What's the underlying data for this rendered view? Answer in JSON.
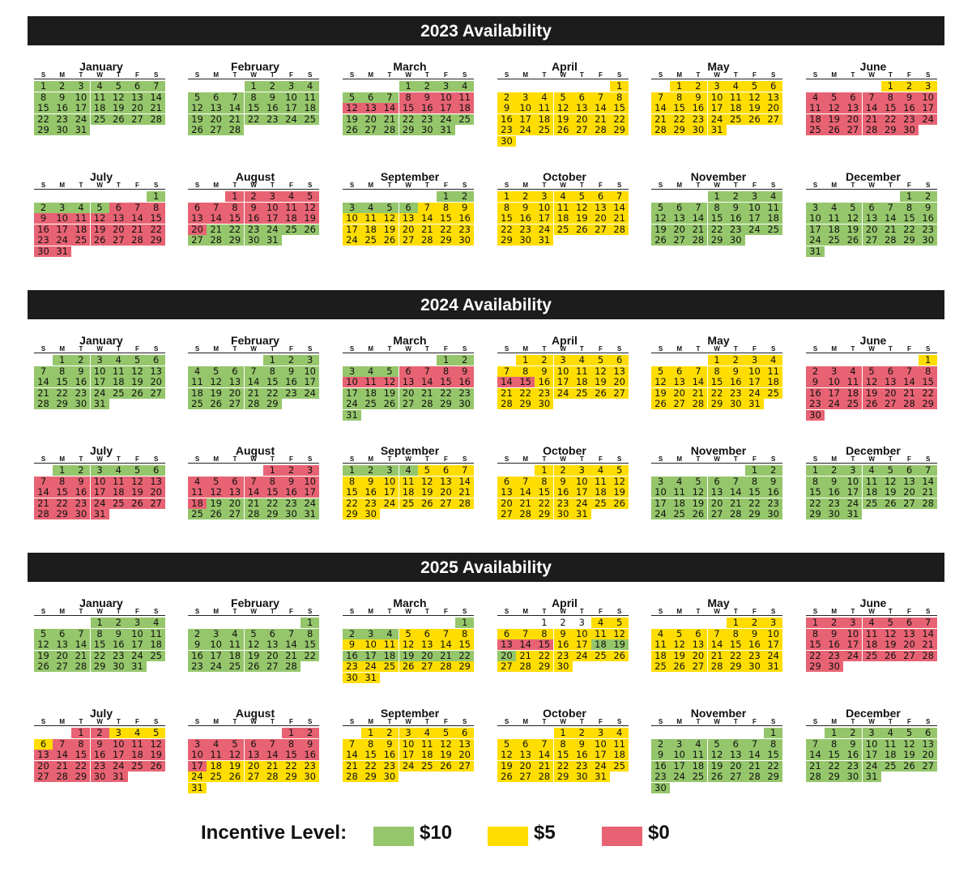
{
  "dow_labels": [
    "S",
    "M",
    "T",
    "W",
    "T",
    "F",
    "S"
  ],
  "colors": {
    "level_10": "#95c66b",
    "level_5": "#ffdd00",
    "level_0": "#e76373"
  },
  "years": [
    {
      "title": "2023 Availability",
      "months": [
        {
          "name": "January",
          "start": 0,
          "days": 31,
          "levels": [
            [
              1,
              31,
              "10"
            ]
          ]
        },
        {
          "name": "February",
          "start": 3,
          "days": 28,
          "levels": [
            [
              1,
              28,
              "10"
            ]
          ]
        },
        {
          "name": "March",
          "start": 3,
          "days": 31,
          "levels": [
            [
              1,
              7,
              "10"
            ],
            [
              8,
              11,
              "0"
            ],
            [
              12,
              18,
              "0"
            ],
            [
              19,
              31,
              "10"
            ]
          ]
        },
        {
          "name": "April",
          "start": 6,
          "days": 30,
          "levels": [
            [
              1,
              30,
              "5"
            ]
          ]
        },
        {
          "name": "May",
          "start": 1,
          "days": 31,
          "levels": [
            [
              1,
              31,
              "5"
            ]
          ]
        },
        {
          "name": "June",
          "start": 4,
          "days": 30,
          "levels": [
            [
              1,
              3,
              "5"
            ],
            [
              4,
              30,
              "0"
            ]
          ]
        },
        {
          "name": "July",
          "start": 6,
          "days": 31,
          "levels": [
            [
              1,
              5,
              "10"
            ],
            [
              6,
              31,
              "0"
            ]
          ]
        },
        {
          "name": "August",
          "start": 2,
          "days": 31,
          "levels": [
            [
              1,
              19,
              "0"
            ],
            [
              20,
              20,
              "0"
            ],
            [
              21,
              31,
              "10"
            ]
          ]
        },
        {
          "name": "September",
          "start": 5,
          "days": 30,
          "levels": [
            [
              1,
              6,
              "10"
            ],
            [
              7,
              30,
              "5"
            ]
          ]
        },
        {
          "name": "October",
          "start": 0,
          "days": 31,
          "levels": [
            [
              1,
              31,
              "5"
            ]
          ]
        },
        {
          "name": "November",
          "start": 3,
          "days": 30,
          "levels": [
            [
              1,
              30,
              "10"
            ]
          ]
        },
        {
          "name": "December",
          "start": 5,
          "days": 31,
          "levels": [
            [
              1,
              31,
              "10"
            ]
          ]
        }
      ]
    },
    {
      "title": "2024 Availability",
      "months": [
        {
          "name": "January",
          "start": 1,
          "days": 31,
          "levels": [
            [
              1,
              31,
              "10"
            ]
          ]
        },
        {
          "name": "February",
          "start": 4,
          "days": 29,
          "levels": [
            [
              1,
              29,
              "10"
            ]
          ]
        },
        {
          "name": "March",
          "start": 5,
          "days": 31,
          "levels": [
            [
              1,
              5,
              "10"
            ],
            [
              6,
              16,
              "0"
            ],
            [
              17,
              31,
              "10"
            ]
          ]
        },
        {
          "name": "April",
          "start": 1,
          "days": 30,
          "levels": [
            [
              1,
              13,
              "5"
            ],
            [
              14,
              15,
              "0"
            ],
            [
              16,
              30,
              "5"
            ]
          ]
        },
        {
          "name": "May",
          "start": 3,
          "days": 31,
          "levels": [
            [
              1,
              31,
              "5"
            ]
          ]
        },
        {
          "name": "June",
          "start": 6,
          "days": 30,
          "levels": [
            [
              1,
              1,
              "5"
            ],
            [
              2,
              30,
              "0"
            ]
          ]
        },
        {
          "name": "July",
          "start": 1,
          "days": 31,
          "levels": [
            [
              1,
              6,
              "10"
            ],
            [
              7,
              31,
              "0"
            ]
          ]
        },
        {
          "name": "August",
          "start": 4,
          "days": 31,
          "levels": [
            [
              1,
              18,
              "0"
            ],
            [
              19,
              31,
              "10"
            ]
          ]
        },
        {
          "name": "September",
          "start": 0,
          "days": 30,
          "levels": [
            [
              1,
              4,
              "10"
            ],
            [
              5,
              30,
              "5"
            ]
          ]
        },
        {
          "name": "October",
          "start": 2,
          "days": 31,
          "levels": [
            [
              1,
              31,
              "5"
            ]
          ]
        },
        {
          "name": "November",
          "start": 5,
          "days": 30,
          "levels": [
            [
              1,
              30,
              "10"
            ]
          ]
        },
        {
          "name": "December",
          "start": 0,
          "days": 31,
          "levels": [
            [
              1,
              31,
              "10"
            ]
          ]
        }
      ]
    },
    {
      "title": "2025 Availability",
      "months": [
        {
          "name": "January",
          "start": 3,
          "days": 31,
          "levels": [
            [
              1,
              31,
              "10"
            ]
          ]
        },
        {
          "name": "February",
          "start": 6,
          "days": 28,
          "levels": [
            [
              1,
              28,
              "10"
            ]
          ]
        },
        {
          "name": "March",
          "start": 6,
          "days": 31,
          "levels": [
            [
              1,
              4,
              "10"
            ],
            [
              5,
              8,
              "5"
            ],
            [
              9,
              15,
              "5"
            ],
            [
              16,
              22,
              "10"
            ],
            [
              23,
              29,
              "5"
            ],
            [
              30,
              31,
              "5"
            ]
          ]
        },
        {
          "name": "April",
          "start": 2,
          "days": 30,
          "levels": [
            [
              1,
              3,
              "none"
            ],
            [
              4,
              12,
              "5"
            ],
            [
              13,
              15,
              "0"
            ],
            [
              16,
              17,
              "5"
            ],
            [
              18,
              19,
              "10"
            ],
            [
              20,
              20,
              "10"
            ],
            [
              21,
              30,
              "5"
            ]
          ]
        },
        {
          "name": "May",
          "start": 4,
          "days": 31,
          "levels": [
            [
              1,
              31,
              "5"
            ]
          ]
        },
        {
          "name": "June",
          "start": 0,
          "days": 30,
          "levels": [
            [
              1,
              30,
              "0"
            ]
          ]
        },
        {
          "name": "July",
          "start": 2,
          "days": 31,
          "levels": [
            [
              1,
              2,
              "0"
            ],
            [
              3,
              5,
              "5"
            ],
            [
              6,
              6,
              "5"
            ],
            [
              7,
              31,
              "0"
            ]
          ]
        },
        {
          "name": "August",
          "start": 5,
          "days": 31,
          "levels": [
            [
              1,
              17,
              "0"
            ],
            [
              18,
              31,
              "5"
            ]
          ]
        },
        {
          "name": "September",
          "start": 1,
          "days": 30,
          "levels": [
            [
              1,
              30,
              "5"
            ]
          ]
        },
        {
          "name": "October",
          "start": 3,
          "days": 31,
          "levels": [
            [
              1,
              31,
              "5"
            ]
          ]
        },
        {
          "name": "November",
          "start": 6,
          "days": 30,
          "levels": [
            [
              1,
              30,
              "10"
            ]
          ]
        },
        {
          "name": "December",
          "start": 1,
          "days": 31,
          "levels": [
            [
              1,
              31,
              "10"
            ]
          ]
        }
      ]
    }
  ],
  "legend": {
    "title": "Incentive Level:",
    "items": [
      {
        "label": "$10",
        "level": "10"
      },
      {
        "label": "$5",
        "level": "5"
      },
      {
        "label": "$0",
        "level": "0"
      }
    ]
  }
}
